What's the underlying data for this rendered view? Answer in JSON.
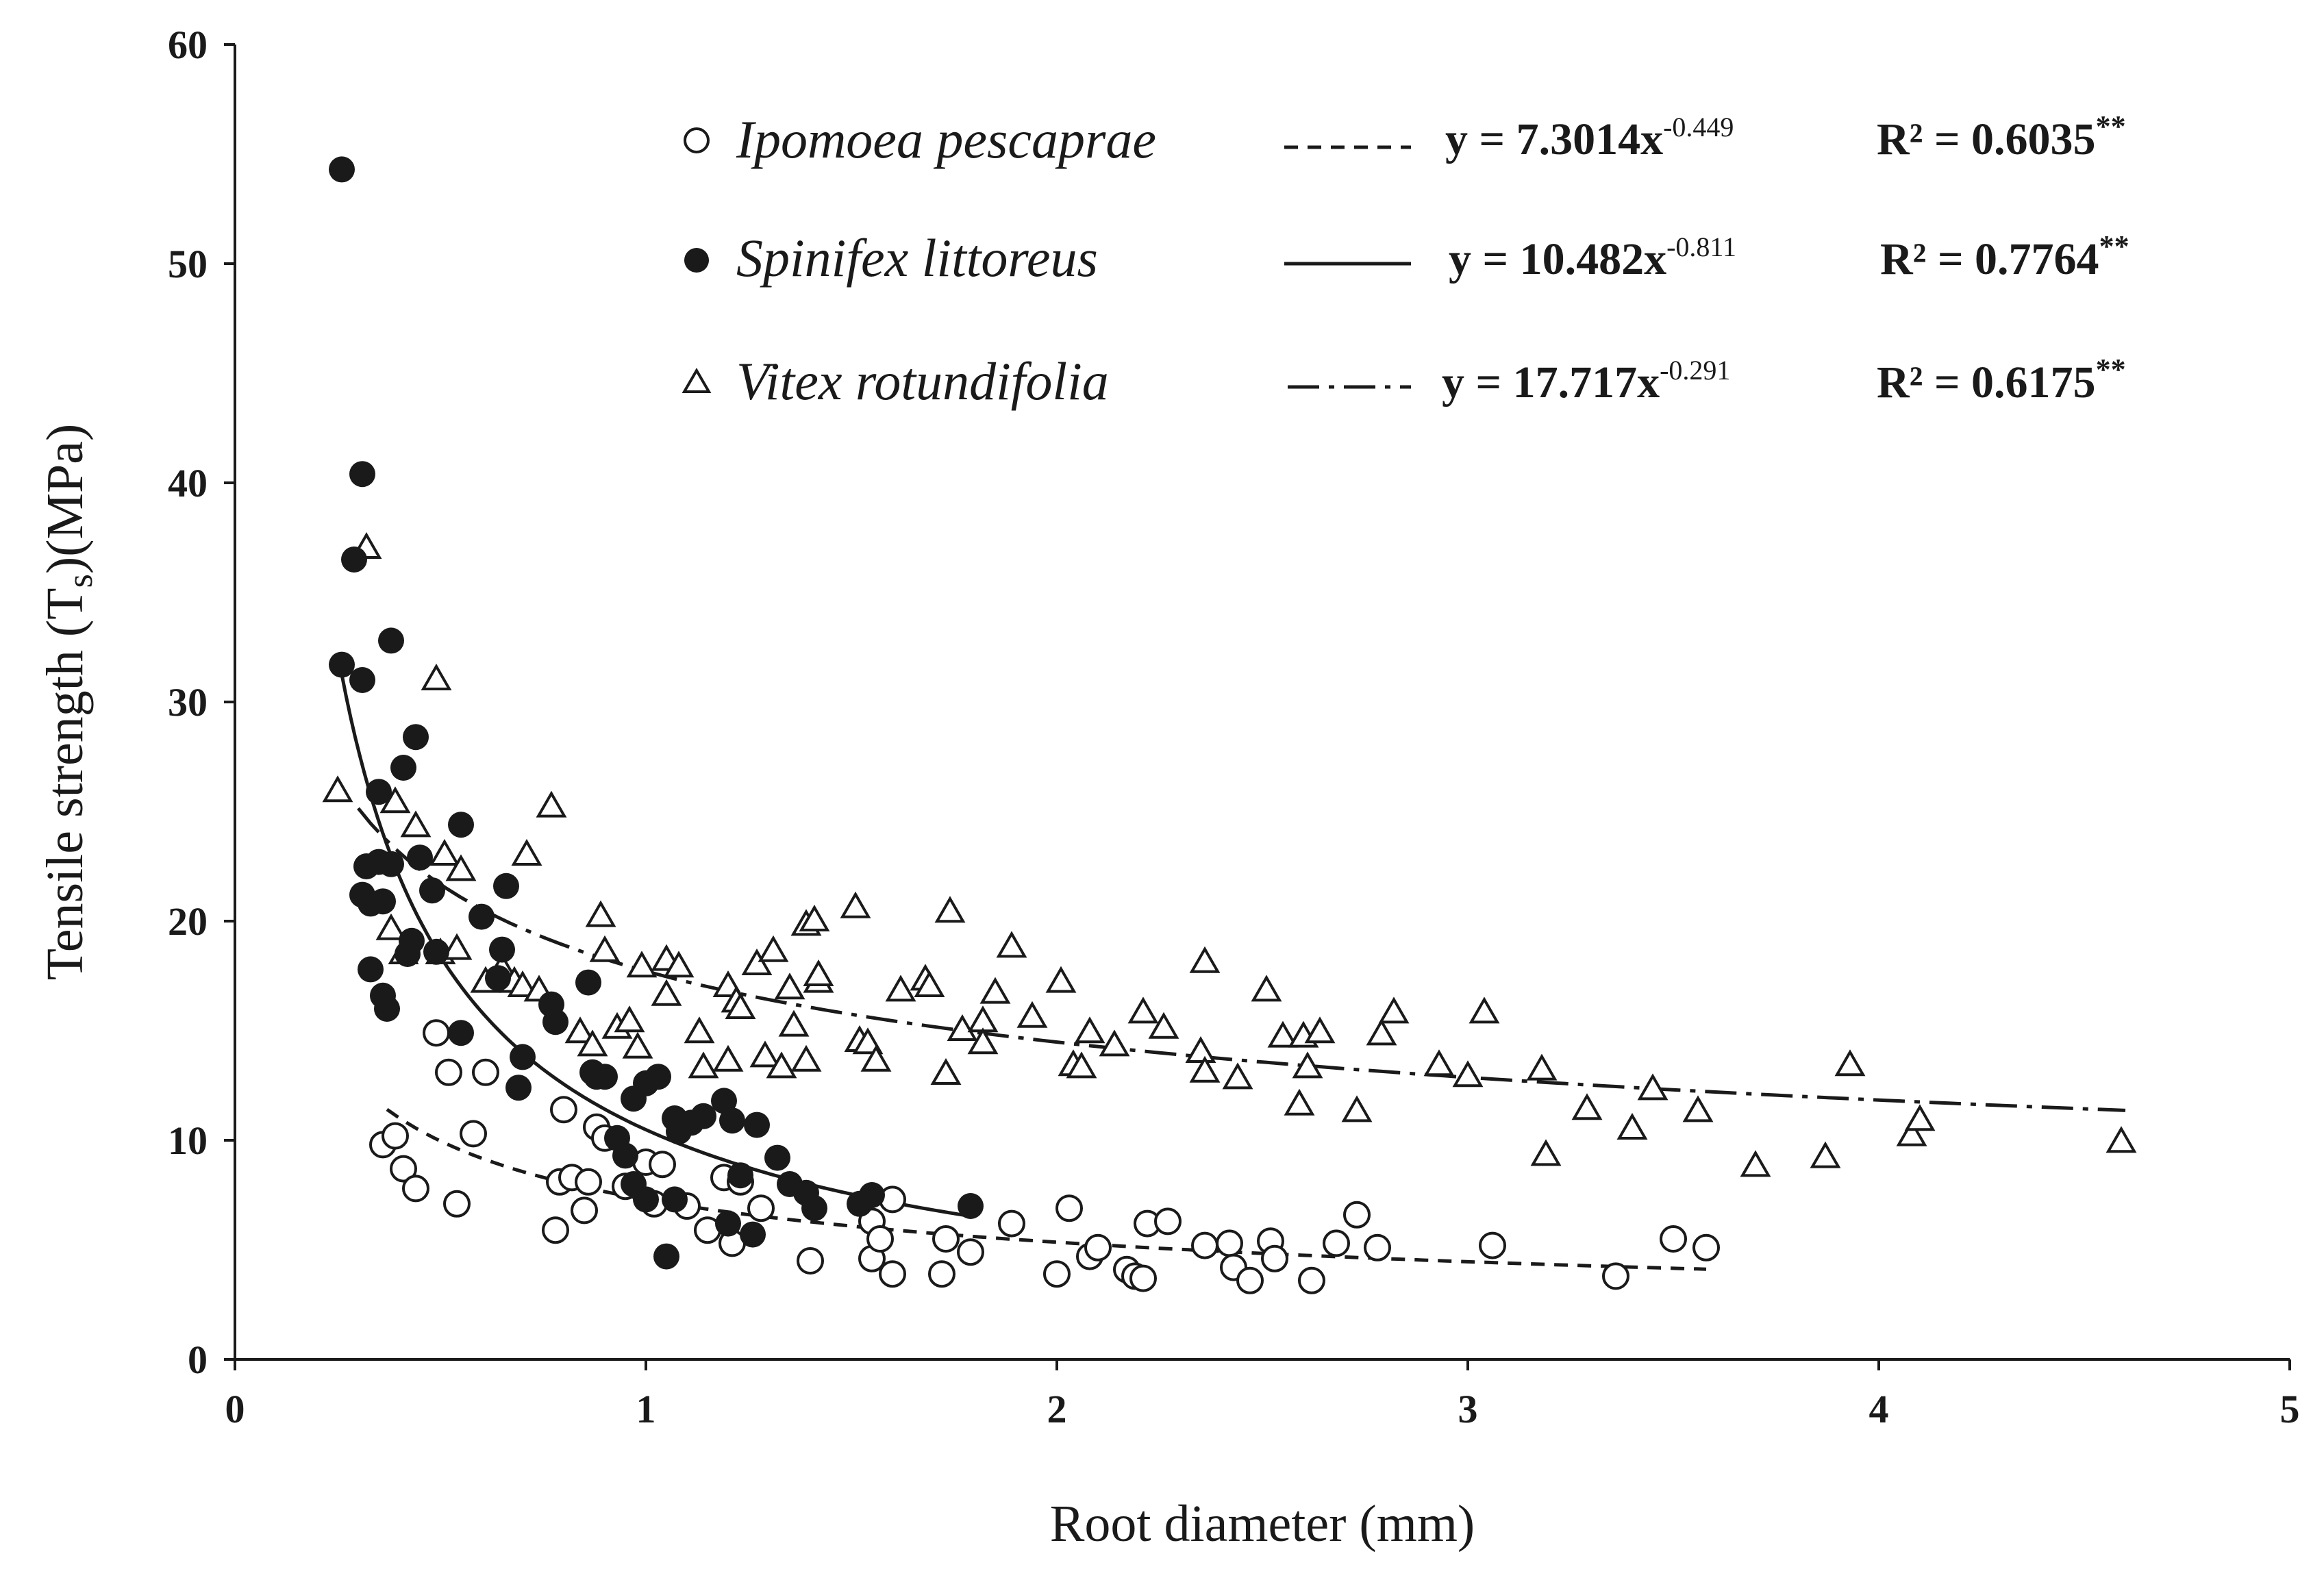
{
  "chart_data": {
    "type": "scatter",
    "title": "",
    "xlabel": "Root diameter (mm)",
    "ylabel": {
      "main": "Tensile strength (T",
      "sub": "s",
      "tail": ")(MPa)"
    },
    "xlim": [
      0,
      5
    ],
    "ylim": [
      0,
      60
    ],
    "xticks": [
      "0",
      "1",
      "2",
      "3",
      "4",
      "5"
    ],
    "yticks": [
      "0",
      "10",
      "20",
      "30",
      "40",
      "50",
      "60"
    ],
    "grid": false,
    "legend_position": "top-right",
    "series": [
      {
        "name": "Ipomoea pescaprae",
        "marker": "open-circle",
        "line_style": "dashed",
        "equation": {
          "base": "y = 7.3014x",
          "exp": "-0.449"
        },
        "r2": {
          "base": "R² = 0.6035",
          "sig": "**"
        },
        "fit": {
          "a": 7.3014,
          "b": -0.449,
          "x_range": [
            0.37,
            3.58
          ]
        },
        "points": [
          [
            0.36,
            9.8
          ],
          [
            0.39,
            10.2
          ],
          [
            0.41,
            8.7
          ],
          [
            0.44,
            7.8
          ],
          [
            0.49,
            14.9
          ],
          [
            0.52,
            13.1
          ],
          [
            0.54,
            7.1
          ],
          [
            0.58,
            10.3
          ],
          [
            0.61,
            13.1
          ],
          [
            0.78,
            5.9
          ],
          [
            0.79,
            8.1
          ],
          [
            0.8,
            11.4
          ],
          [
            0.82,
            8.3
          ],
          [
            0.85,
            6.8
          ],
          [
            0.86,
            8.1
          ],
          [
            0.88,
            10.6
          ],
          [
            0.9,
            10.1
          ],
          [
            0.95,
            7.9
          ],
          [
            1.0,
            9.0
          ],
          [
            1.02,
            7.1
          ],
          [
            1.04,
            8.9
          ],
          [
            1.1,
            7.0
          ],
          [
            1.15,
            5.9
          ],
          [
            1.19,
            8.3
          ],
          [
            1.21,
            5.3
          ],
          [
            1.23,
            8.1
          ],
          [
            1.28,
            6.9
          ],
          [
            1.4,
            4.5
          ],
          [
            1.55,
            6.3
          ],
          [
            1.55,
            4.6
          ],
          [
            1.57,
            5.5
          ],
          [
            1.6,
            3.9
          ],
          [
            1.6,
            7.3
          ],
          [
            1.72,
            3.9
          ],
          [
            1.73,
            5.5
          ],
          [
            1.79,
            4.9
          ],
          [
            1.89,
            6.2
          ],
          [
            2.0,
            3.9
          ],
          [
            2.03,
            6.9
          ],
          [
            2.08,
            4.7
          ],
          [
            2.1,
            5.1
          ],
          [
            2.17,
            4.1
          ],
          [
            2.19,
            3.8
          ],
          [
            2.21,
            3.7
          ],
          [
            2.22,
            6.2
          ],
          [
            2.27,
            6.3
          ],
          [
            2.36,
            5.2
          ],
          [
            2.42,
            5.3
          ],
          [
            2.43,
            4.2
          ],
          [
            2.47,
            3.6
          ],
          [
            2.52,
            5.4
          ],
          [
            2.53,
            4.6
          ],
          [
            2.62,
            3.6
          ],
          [
            2.68,
            5.3
          ],
          [
            2.73,
            6.6
          ],
          [
            2.78,
            5.1
          ],
          [
            3.06,
            5.2
          ],
          [
            3.36,
            3.8
          ],
          [
            3.5,
            5.5
          ],
          [
            3.58,
            5.1
          ]
        ]
      },
      {
        "name": "Spinifex littoreus",
        "marker": "filled-circle",
        "line_style": "solid",
        "equation": {
          "base": "y = 10.482x",
          "exp": "-0.811"
        },
        "r2": {
          "base": "R² = 0.7764",
          "sig": "**"
        },
        "fit": {
          "a": 10.482,
          "b": -0.811,
          "x_range": [
            0.26,
            1.78
          ]
        },
        "points": [
          [
            0.26,
            54.3
          ],
          [
            0.29,
            36.5
          ],
          [
            0.31,
            40.4
          ],
          [
            0.26,
            31.7
          ],
          [
            0.31,
            31.0
          ],
          [
            0.38,
            32.8
          ],
          [
            0.35,
            25.9
          ],
          [
            0.41,
            27.0
          ],
          [
            0.44,
            28.4
          ],
          [
            0.45,
            22.9
          ],
          [
            0.32,
            22.5
          ],
          [
            0.35,
            22.7
          ],
          [
            0.38,
            22.6
          ],
          [
            0.31,
            21.2
          ],
          [
            0.33,
            20.8
          ],
          [
            0.36,
            20.9
          ],
          [
            0.33,
            17.8
          ],
          [
            0.36,
            16.6
          ],
          [
            0.37,
            16.0
          ],
          [
            0.42,
            18.5
          ],
          [
            0.43,
            19.1
          ],
          [
            0.48,
            21.4
          ],
          [
            0.49,
            18.6
          ],
          [
            0.55,
            24.4
          ],
          [
            0.6,
            20.2
          ],
          [
            0.65,
            18.7
          ],
          [
            0.66,
            21.6
          ],
          [
            0.64,
            17.4
          ],
          [
            0.55,
            14.9
          ],
          [
            0.7,
            13.8
          ],
          [
            0.69,
            12.4
          ],
          [
            0.77,
            16.2
          ],
          [
            0.78,
            15.4
          ],
          [
            0.86,
            17.2
          ],
          [
            0.87,
            13.1
          ],
          [
            0.88,
            12.9
          ],
          [
            0.9,
            12.9
          ],
          [
            0.93,
            10.1
          ],
          [
            0.97,
            11.9
          ],
          [
            1.0,
            12.6
          ],
          [
            1.03,
            12.9
          ],
          [
            1.07,
            11.0
          ],
          [
            1.08,
            10.4
          ],
          [
            1.11,
            10.8
          ],
          [
            1.14,
            11.1
          ],
          [
            1.19,
            11.8
          ],
          [
            1.21,
            10.9
          ],
          [
            1.27,
            10.7
          ],
          [
            0.95,
            9.3
          ],
          [
            0.97,
            8.0
          ],
          [
            1.0,
            7.3
          ],
          [
            1.07,
            7.3
          ],
          [
            1.05,
            4.7
          ],
          [
            1.2,
            6.2
          ],
          [
            1.23,
            8.4
          ],
          [
            1.26,
            5.7
          ],
          [
            1.32,
            9.2
          ],
          [
            1.35,
            8.0
          ],
          [
            1.39,
            7.6
          ],
          [
            1.41,
            6.9
          ],
          [
            1.52,
            7.1
          ],
          [
            1.55,
            7.5
          ],
          [
            1.79,
            7.0
          ]
        ]
      },
      {
        "name": "Vitex rotundifolia",
        "marker": "open-triangle",
        "line_style": "dash-dot",
        "equation": {
          "base": "y = 17.717x",
          "exp": "-0.291"
        },
        "r2": {
          "base": "R² = 0.6175",
          "sig": "**"
        },
        "fit": {
          "a": 17.717,
          "b": -0.291,
          "x_range": [
            0.3,
            4.6
          ]
        },
        "points": [
          [
            0.32,
            37.0
          ],
          [
            0.49,
            31.0
          ],
          [
            0.25,
            25.9
          ],
          [
            0.39,
            25.4
          ],
          [
            0.44,
            24.3
          ],
          [
            0.51,
            23.0
          ],
          [
            0.55,
            22.3
          ],
          [
            0.71,
            23.0
          ],
          [
            0.77,
            25.2
          ],
          [
            0.38,
            19.6
          ],
          [
            0.41,
            18.5
          ],
          [
            0.5,
            18.5
          ],
          [
            0.54,
            18.7
          ],
          [
            0.61,
            17.2
          ],
          [
            0.65,
            17.8
          ],
          [
            0.68,
            17.2
          ],
          [
            0.7,
            17.0
          ],
          [
            0.74,
            16.8
          ],
          [
            0.84,
            14.9
          ],
          [
            0.87,
            14.3
          ],
          [
            0.89,
            20.2
          ],
          [
            0.9,
            18.6
          ],
          [
            0.93,
            15.1
          ],
          [
            0.96,
            15.4
          ],
          [
            0.98,
            14.2
          ],
          [
            0.99,
            17.9
          ],
          [
            1.05,
            18.2
          ],
          [
            1.08,
            17.9
          ],
          [
            1.05,
            16.6
          ],
          [
            1.13,
            14.9
          ],
          [
            1.14,
            13.3
          ],
          [
            1.2,
            17.0
          ],
          [
            1.22,
            16.3
          ],
          [
            1.23,
            16.0
          ],
          [
            1.27,
            18.0
          ],
          [
            1.31,
            18.6
          ],
          [
            1.35,
            16.9
          ],
          [
            1.36,
            15.2
          ],
          [
            1.39,
            19.8
          ],
          [
            1.41,
            20.0
          ],
          [
            1.42,
            17.2
          ],
          [
            1.42,
            17.5
          ],
          [
            1.29,
            13.8
          ],
          [
            1.33,
            13.3
          ],
          [
            1.39,
            13.6
          ],
          [
            1.2,
            13.6
          ],
          [
            1.51,
            20.6
          ],
          [
            1.52,
            14.5
          ],
          [
            1.54,
            14.4
          ],
          [
            1.56,
            13.6
          ],
          [
            1.62,
            16.8
          ],
          [
            1.68,
            17.3
          ],
          [
            1.69,
            17.0
          ],
          [
            1.73,
            13.0
          ],
          [
            1.74,
            20.4
          ],
          [
            1.77,
            15.0
          ],
          [
            1.82,
            15.4
          ],
          [
            1.82,
            14.4
          ],
          [
            1.85,
            16.7
          ],
          [
            1.89,
            18.8
          ],
          [
            1.94,
            15.6
          ],
          [
            2.01,
            17.2
          ],
          [
            2.04,
            13.4
          ],
          [
            2.06,
            13.3
          ],
          [
            2.08,
            14.9
          ],
          [
            2.14,
            14.3
          ],
          [
            2.21,
            15.8
          ],
          [
            2.26,
            15.1
          ],
          [
            2.36,
            18.1
          ],
          [
            2.35,
            14.0
          ],
          [
            2.36,
            13.1
          ],
          [
            2.44,
            12.8
          ],
          [
            2.51,
            16.8
          ],
          [
            2.55,
            14.7
          ],
          [
            2.59,
            11.6
          ],
          [
            2.6,
            14.7
          ],
          [
            2.61,
            13.3
          ],
          [
            2.64,
            14.9
          ],
          [
            2.73,
            11.3
          ],
          [
            2.79,
            14.8
          ],
          [
            2.82,
            15.8
          ],
          [
            2.93,
            13.4
          ],
          [
            3.0,
            12.9
          ],
          [
            3.04,
            15.8
          ],
          [
            3.18,
            13.2
          ],
          [
            3.19,
            9.3
          ],
          [
            3.29,
            11.4
          ],
          [
            3.4,
            10.5
          ],
          [
            3.45,
            12.3
          ],
          [
            3.56,
            11.3
          ],
          [
            3.7,
            8.8
          ],
          [
            3.87,
            9.2
          ],
          [
            3.93,
            13.4
          ],
          [
            4.08,
            10.2
          ],
          [
            4.1,
            10.9
          ],
          [
            4.59,
            9.9
          ]
        ]
      }
    ]
  }
}
